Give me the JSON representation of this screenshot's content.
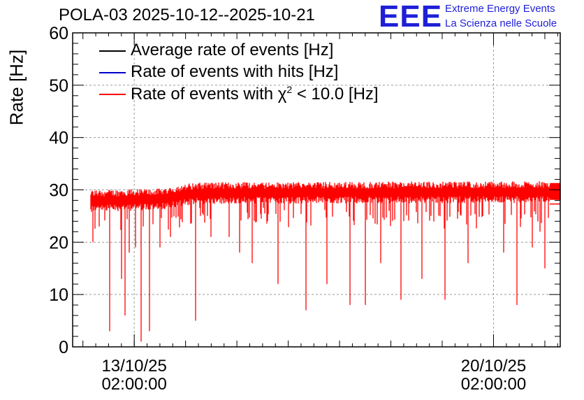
{
  "header": {
    "title": "POLA-03 2025-10-12--2025-10-21",
    "logo_text": "EEE",
    "logo_line1": "Extreme Energy Events",
    "logo_line2": "La Scienza nelle Scuole"
  },
  "colors": {
    "average": "#000000",
    "hits": "#0000cc",
    "chi2": "#ff0000",
    "brand": "#1f1fd8"
  },
  "legend": [
    {
      "label": "Average rate of events [Hz]",
      "color": "#000000"
    },
    {
      "label": "Rate of events with hits [Hz]",
      "color": "#0000cc"
    },
    {
      "label_prefix": "Rate of events with ",
      "label_symbol": "χ",
      "label_sup": "2",
      "label_suffix": " < 10.0 [Hz]",
      "color": "#ff0000"
    }
  ],
  "chart_data": {
    "type": "line",
    "title": "POLA-03 2025-10-12--2025-10-21",
    "ylabel": "Rate [Hz]",
    "xlabel": "",
    "ylim": [
      0,
      60
    ],
    "yticks": [
      0,
      10,
      20,
      30,
      40,
      50,
      60
    ],
    "xlim_days": [
      -1.2,
      8.3
    ],
    "xticks": [
      {
        "day": 0,
        "label_date": "13/10/25",
        "label_time": "02:00:00"
      },
      {
        "day": 7,
        "label_date": "20/10/25",
        "label_time": "02:00:00"
      }
    ],
    "grid": true,
    "series": [
      {
        "name": "Rate of events with χ² < 10.0 [Hz]",
        "color": "#ff0000",
        "x_start_day": -0.85,
        "x_end_day": 8.3,
        "baseline": [
          {
            "day": -0.85,
            "value": 28
          },
          {
            "day": 0.5,
            "value": 28.3
          },
          {
            "day": 1.2,
            "value": 29.5
          },
          {
            "day": 8.3,
            "value": 29.7
          }
        ],
        "spread": 2.2,
        "dips": [
          {
            "day": -0.8,
            "value": 20
          },
          {
            "day": -0.68,
            "value": 23
          },
          {
            "day": -0.48,
            "value": 3
          },
          {
            "day": -0.25,
            "value": 13
          },
          {
            "day": -0.18,
            "value": 6
          },
          {
            "day": -0.1,
            "value": 18
          },
          {
            "day": 0.03,
            "value": 19
          },
          {
            "day": 0.13,
            "value": 1
          },
          {
            "day": 0.18,
            "value": 23
          },
          {
            "day": 0.3,
            "value": 3
          },
          {
            "day": 0.5,
            "value": 19
          },
          {
            "day": 0.7,
            "value": 21
          },
          {
            "day": 1.2,
            "value": 5
          },
          {
            "day": 1.5,
            "value": 21
          },
          {
            "day": 1.85,
            "value": 21
          },
          {
            "day": 2.05,
            "value": 18
          },
          {
            "day": 2.3,
            "value": 16
          },
          {
            "day": 2.8,
            "value": 12
          },
          {
            "day": 3.35,
            "value": 7
          },
          {
            "day": 3.75,
            "value": 12
          },
          {
            "day": 4.2,
            "value": 8
          },
          {
            "day": 4.5,
            "value": 8
          },
          {
            "day": 4.8,
            "value": 16
          },
          {
            "day": 5.2,
            "value": 9
          },
          {
            "day": 5.6,
            "value": 13
          },
          {
            "day": 6.05,
            "value": 9
          },
          {
            "day": 6.5,
            "value": 16
          },
          {
            "day": 7.2,
            "value": 18
          },
          {
            "day": 7.45,
            "value": 8
          },
          {
            "day": 7.75,
            "value": 19
          },
          {
            "day": 7.9,
            "value": 22
          },
          {
            "day": 8.0,
            "value": 15
          },
          {
            "day": 8.15,
            "value": 23
          }
        ]
      },
      {
        "name": "Average rate of events [Hz]",
        "color": "#000000",
        "note": "hidden beneath red series"
      },
      {
        "name": "Rate of events with hits [Hz]",
        "color": "#0000cc",
        "note": "hidden beneath red series"
      }
    ]
  }
}
